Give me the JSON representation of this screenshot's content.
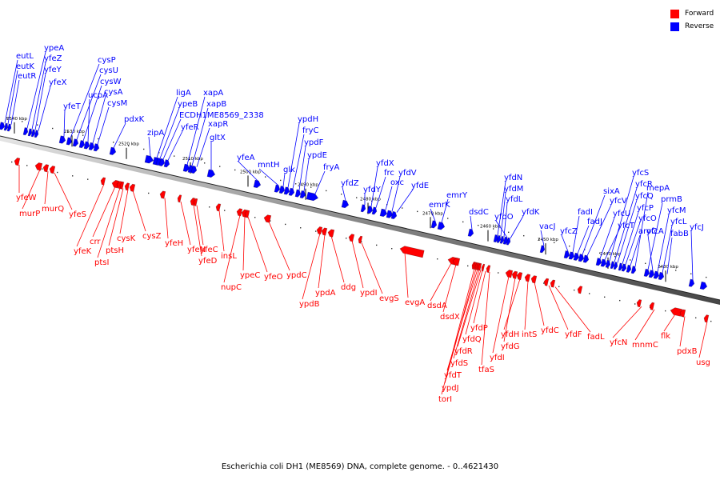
{
  "legend": [
    {
      "label": "Forward",
      "color": "#ff0000"
    },
    {
      "label": "Reverse",
      "color": "#0000ff"
    }
  ],
  "caption": "Escherichia coli DH1 (ME8569) DNA, complete genome. - 0..4621430",
  "colors": {
    "forward": "#ff0000",
    "reverse": "#0000ff",
    "backbone": "#a0a0a0"
  },
  "ticks": [
    "2540 kbp",
    "2530 kbp",
    "2520 kbp",
    "2510 kbp",
    "2500 kbp",
    "2490 kbp",
    "2480 kbp",
    "2470 kbp",
    "2460 kbp",
    "2450 kbp",
    "2440 kbp",
    "2430 kbp"
  ],
  "reverse_genes": [
    "eutL",
    "eutK",
    "eutR",
    "ypeA",
    "yfeZ",
    "yfeY",
    "yfeX",
    "yfeT",
    "cysP",
    "cysU",
    "cysW",
    "ucpA",
    "cysA",
    "cysM",
    "pdxK",
    "zipA",
    "ligA",
    "ypeB",
    "ECDH1ME8569_2338",
    "yfeR",
    "xapA",
    "xapB",
    "xapR",
    "gltX",
    "yfeA",
    "mntH",
    "glk",
    "ypdH",
    "fryC",
    "ypdF",
    "ypdE",
    "fryA",
    "yfdZ",
    "yfdY",
    "yfdX",
    "frc",
    "oxc",
    "yfdV",
    "yfdE",
    "emrK",
    "emrY",
    "dsdC",
    "yfdN",
    "yfdM",
    "yfdL",
    "yfdO",
    "yfdK",
    "vacJ",
    "yfcZ",
    "fadI",
    "fadJ",
    "sixA",
    "yfcV",
    "yfcU",
    "yfcT",
    "yfcS",
    "yfcR",
    "yfcQ",
    "yfcP",
    "yfcO",
    "aroC",
    "mepA",
    "prmB",
    "yfcA",
    "yfcM",
    "yfcL",
    "fabB",
    "yfcJ"
  ],
  "forward_genes": [
    "yfeW",
    "murP",
    "murQ",
    "yfeS",
    "yfeK",
    "crr",
    "ptsI",
    "ptsH",
    "cysK",
    "cysZ",
    "yfeH",
    "yfeN",
    "yfeD",
    "yfeC",
    "insL",
    "nupC",
    "ypeC",
    "yfeO",
    "ypdC",
    "ypdB",
    "ypdA",
    "ddg",
    "ypdI",
    "evgS",
    "evgA",
    "dsdA",
    "dsdX",
    "torI",
    "ypdJ",
    "yfdT",
    "yfdS",
    "yfdR",
    "yfdQ",
    "yfdP",
    "tfaS",
    "yfdI",
    "yfdG",
    "yfdH",
    "intS",
    "yfdC",
    "yfdF",
    "fadL",
    "yfcN",
    "mnmC",
    "flk",
    "pdxB",
    "usg"
  ]
}
